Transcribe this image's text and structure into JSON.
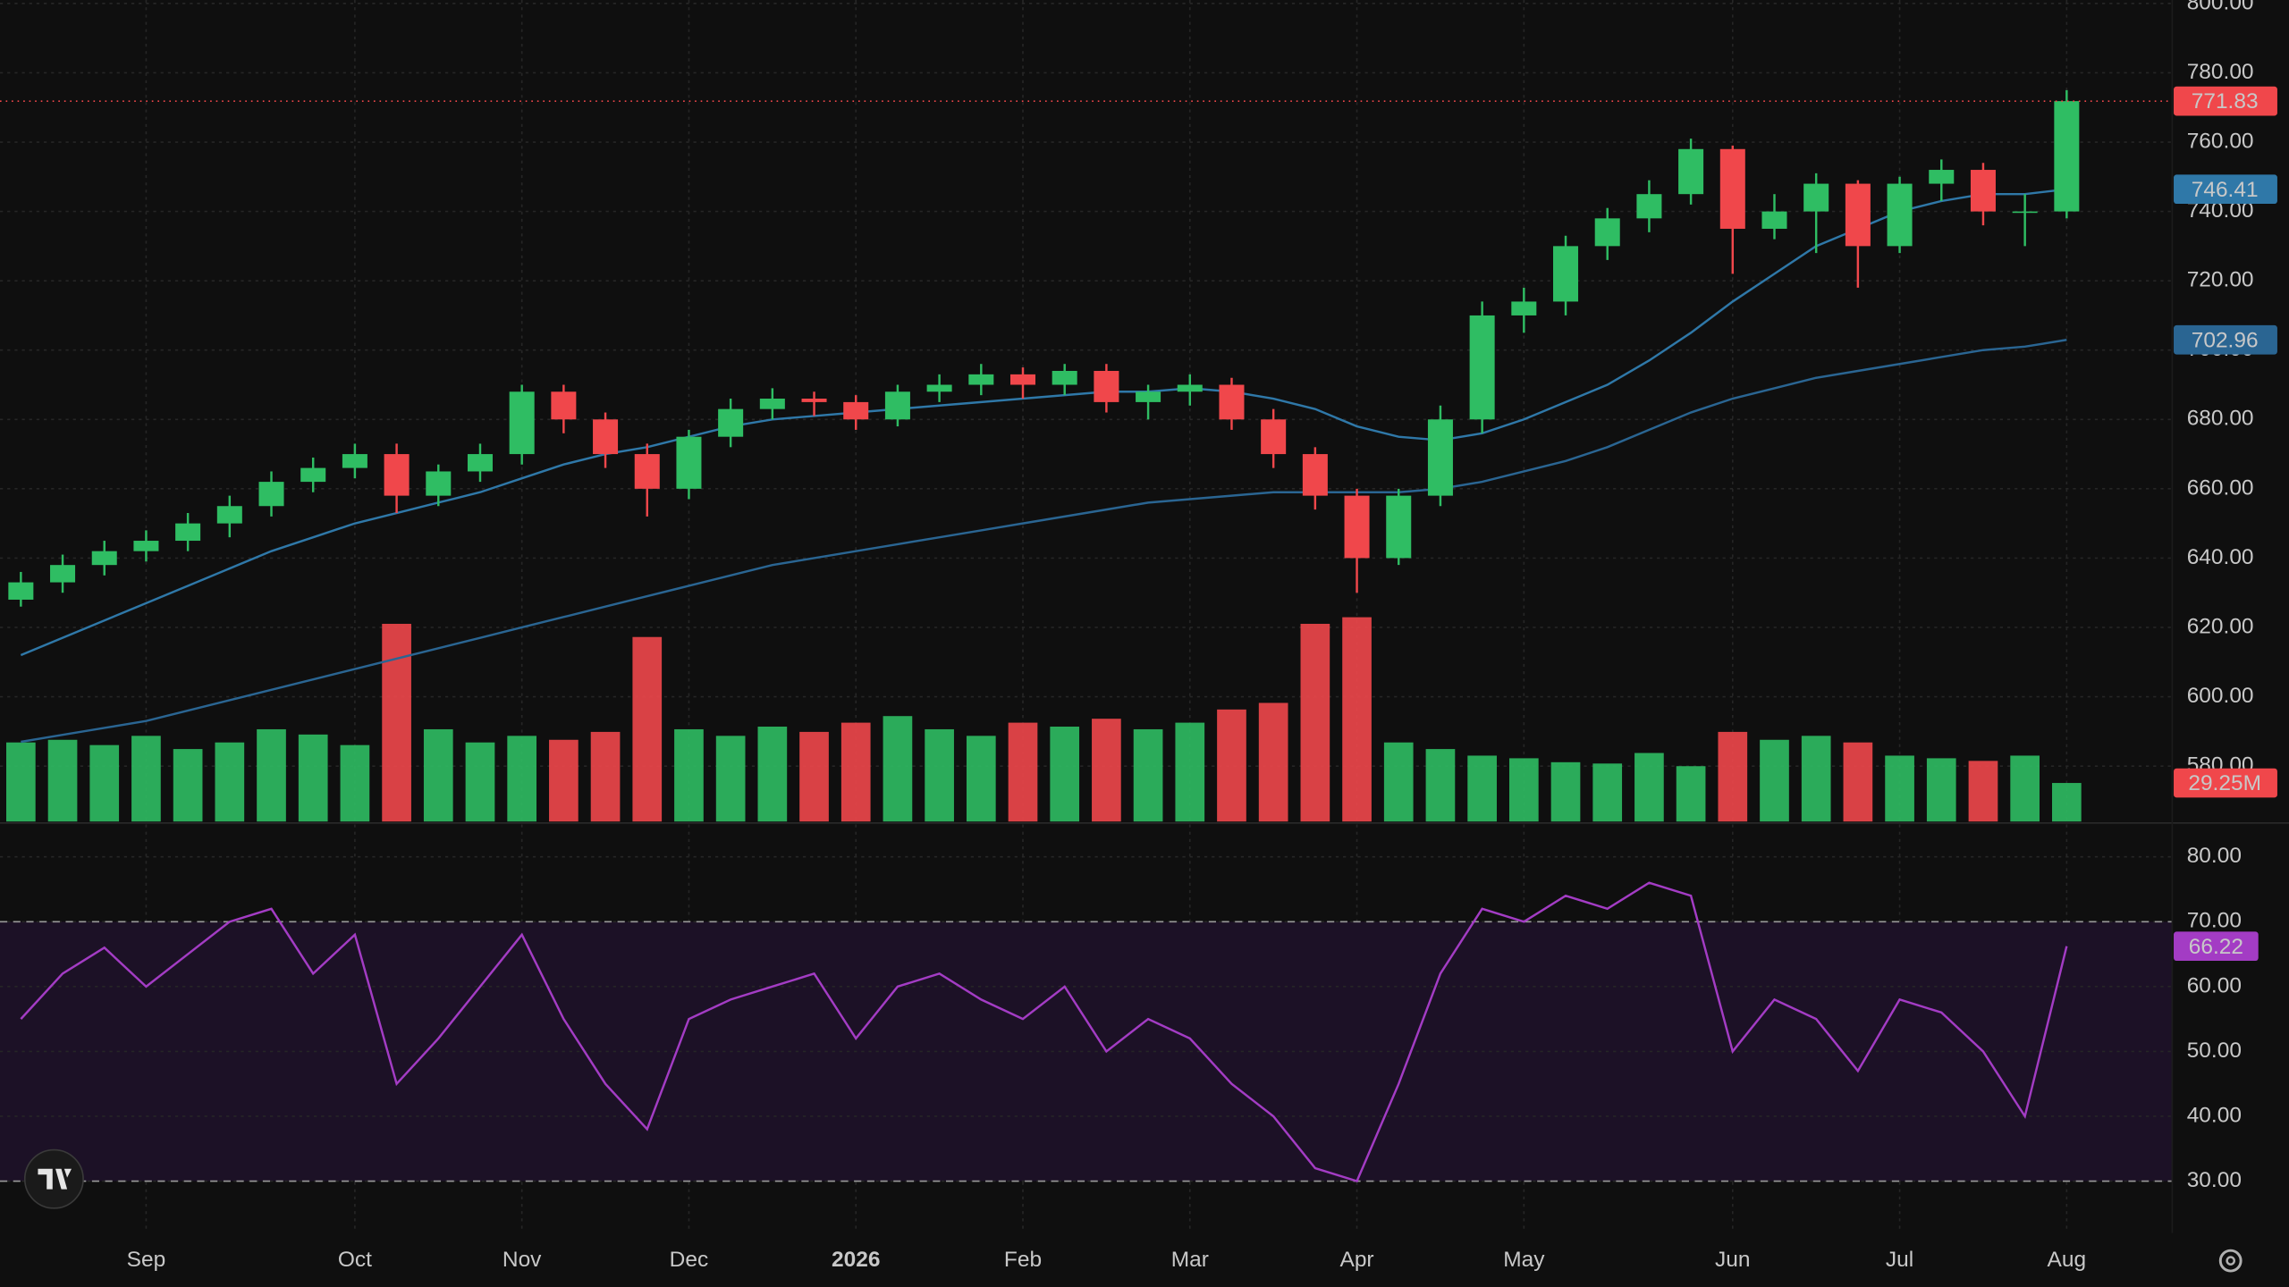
{
  "chart_data": [
    {
      "type": "candlestick",
      "categories": [
        null,
        null,
        null,
        "Sep",
        null,
        null,
        null,
        null,
        "Oct",
        null,
        null,
        null,
        "Nov",
        null,
        null,
        null,
        "Dec",
        null,
        null,
        null,
        "2026",
        null,
        null,
        null,
        "Feb",
        null,
        null,
        null,
        "Mar",
        null,
        null,
        null,
        "Apr",
        null,
        null,
        null,
        "May",
        null,
        null,
        null,
        null,
        "Jun",
        null,
        null,
        null,
        "Jul",
        null,
        null,
        null,
        "Aug"
      ],
      "open": [
        628,
        633,
        638,
        642,
        645,
        650,
        655,
        662,
        666,
        670,
        658,
        665,
        670,
        688,
        680,
        670,
        660,
        675,
        683,
        686,
        685,
        680,
        688,
        690,
        693,
        690,
        694,
        685,
        688,
        690,
        680,
        670,
        658,
        640,
        658,
        680,
        710,
        714,
        730,
        738,
        745,
        758,
        735,
        740,
        748,
        730,
        748,
        752,
        740,
        740
      ],
      "high": [
        636,
        641,
        645,
        648,
        653,
        658,
        665,
        669,
        673,
        673,
        667,
        673,
        690,
        690,
        682,
        673,
        677,
        686,
        689,
        688,
        687,
        690,
        693,
        696,
        695,
        696,
        696,
        690,
        693,
        692,
        683,
        672,
        660,
        660,
        684,
        714,
        718,
        733,
        741,
        749,
        761,
        759,
        745,
        751,
        749,
        750,
        755,
        754,
        745,
        775
      ],
      "low": [
        626,
        630,
        635,
        639,
        642,
        646,
        652,
        659,
        663,
        653,
        655,
        662,
        667,
        676,
        666,
        652,
        657,
        672,
        680,
        681,
        677,
        678,
        685,
        687,
        686,
        687,
        682,
        680,
        684,
        677,
        666,
        654,
        630,
        638,
        655,
        676,
        705,
        710,
        726,
        734,
        742,
        722,
        732,
        728,
        718,
        728,
        743,
        736,
        730,
        738
      ],
      "close": [
        633,
        638,
        642,
        645,
        650,
        655,
        662,
        666,
        670,
        658,
        665,
        670,
        688,
        680,
        670,
        660,
        675,
        683,
        686,
        685,
        680,
        688,
        690,
        693,
        690,
        694,
        685,
        688,
        690,
        680,
        670,
        658,
        640,
        658,
        680,
        710,
        714,
        730,
        738,
        745,
        758,
        735,
        740,
        748,
        730,
        748,
        752,
        740,
        740,
        771.83
      ],
      "up_color": "#2fbd63",
      "down_color": "#f0474b",
      "moving_averages": [
        {
          "color": "#2f78a8",
          "values": [
            612,
            617,
            622,
            627,
            632,
            637,
            642,
            646,
            650,
            653,
            656,
            659,
            663,
            667,
            670,
            672,
            675,
            678,
            680,
            681,
            682,
            683,
            684,
            685,
            686,
            687,
            688,
            688,
            689,
            688,
            686,
            683,
            678,
            675,
            674,
            676,
            680,
            685,
            690,
            697,
            705,
            714,
            722,
            730,
            735,
            740,
            743,
            745,
            745,
            746.41
          ]
        },
        {
          "color": "#2a6592",
          "values": [
            587,
            589,
            591,
            593,
            596,
            599,
            602,
            605,
            608,
            611,
            614,
            617,
            620,
            623,
            626,
            629,
            632,
            635,
            638,
            640,
            642,
            644,
            646,
            648,
            650,
            652,
            654,
            656,
            657,
            658,
            659,
            659,
            659,
            659,
            660,
            662,
            665,
            668,
            672,
            677,
            682,
            686,
            689,
            692,
            694,
            696,
            698,
            700,
            701,
            702.96
          ]
        }
      ],
      "volume": {
        "values": [
          60,
          62,
          58,
          65,
          55,
          60,
          70,
          66,
          58,
          150,
          70,
          60,
          65,
          62,
          68,
          140,
          70,
          65,
          72,
          68,
          75,
          80,
          70,
          65,
          75,
          72,
          78,
          70,
          75,
          85,
          90,
          150,
          155,
          60,
          55,
          50,
          48,
          45,
          44,
          52,
          42,
          68,
          62,
          65,
          60,
          50,
          48,
          46,
          50,
          29.25
        ],
        "value_labels": [
          null,
          null,
          null,
          null,
          null,
          null,
          null,
          null,
          null,
          null,
          null,
          null,
          null,
          null,
          null,
          null,
          null,
          null,
          null,
          null,
          null,
          null,
          null,
          null,
          null,
          null,
          null,
          null,
          null,
          null,
          null,
          null,
          null,
          null,
          null,
          null,
          null,
          null,
          null,
          null,
          null,
          null,
          null,
          null,
          null,
          null,
          null,
          null,
          null,
          "29.25M"
        ]
      },
      "ylim": [
        564,
        801
      ],
      "yticks": [
        {
          "value": 580,
          "label": "580.00"
        },
        {
          "value": 600,
          "label": "600.00"
        },
        {
          "value": 620,
          "label": "620.00"
        },
        {
          "value": 640,
          "label": "640.00"
        },
        {
          "value": 660,
          "label": "660.00"
        },
        {
          "value": 680,
          "label": "680.00"
        },
        {
          "value": 700,
          "label": "700.00"
        },
        {
          "value": 720,
          "label": "720.00"
        },
        {
          "value": 740,
          "label": "740.00"
        },
        {
          "value": 760,
          "label": "760.00"
        },
        {
          "value": 780,
          "label": "780.00"
        },
        {
          "value": 800,
          "label": "800.00"
        }
      ],
      "grid": true
    },
    {
      "type": "line",
      "color": "#a33cc4",
      "values": [
        55,
        62,
        66,
        60,
        65,
        70,
        72,
        62,
        68,
        45,
        52,
        60,
        68,
        55,
        45,
        38,
        55,
        58,
        60,
        62,
        52,
        60,
        62,
        58,
        55,
        60,
        50,
        55,
        52,
        45,
        40,
        32,
        30,
        45,
        62,
        72,
        70,
        74,
        72,
        76,
        74,
        50,
        58,
        55,
        47,
        58,
        56,
        50,
        40,
        66.22
      ],
      "bands": [
        30,
        70
      ],
      "ylim": [
        22,
        85
      ],
      "yticks": [
        {
          "value": 30,
          "label": "30.00"
        },
        {
          "value": 40,
          "label": "40.00"
        },
        {
          "value": 50,
          "label": "50.00"
        },
        {
          "value": 60,
          "label": "60.00"
        },
        {
          "value": 70,
          "label": "70.00"
        },
        {
          "value": 80,
          "label": "80.00"
        }
      ],
      "grid": true
    }
  ]
}
